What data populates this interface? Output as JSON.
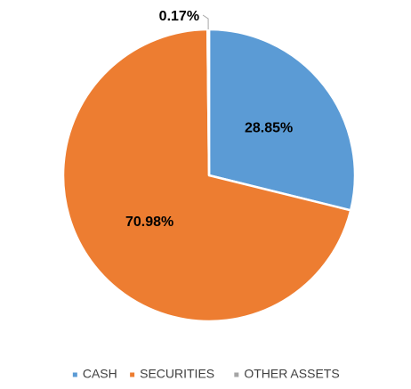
{
  "chart_data": {
    "type": "pie",
    "title": "",
    "categories": [
      "CASH",
      "SECURITIES",
      "OTHER ASSETS"
    ],
    "values": [
      28.85,
      70.98,
      0.17
    ],
    "data_labels": [
      "28.85%",
      "70.98%",
      "0.17%"
    ],
    "unit": "%",
    "colors": [
      "#5b9bd5",
      "#ed7d31",
      "#a5a5a5"
    ],
    "start_angle_deg": 0,
    "direction": "clockwise",
    "legend": {
      "placement": "bottom",
      "entries": [
        "CASH",
        "SECURITIES",
        "OTHER ASSETS"
      ]
    }
  }
}
